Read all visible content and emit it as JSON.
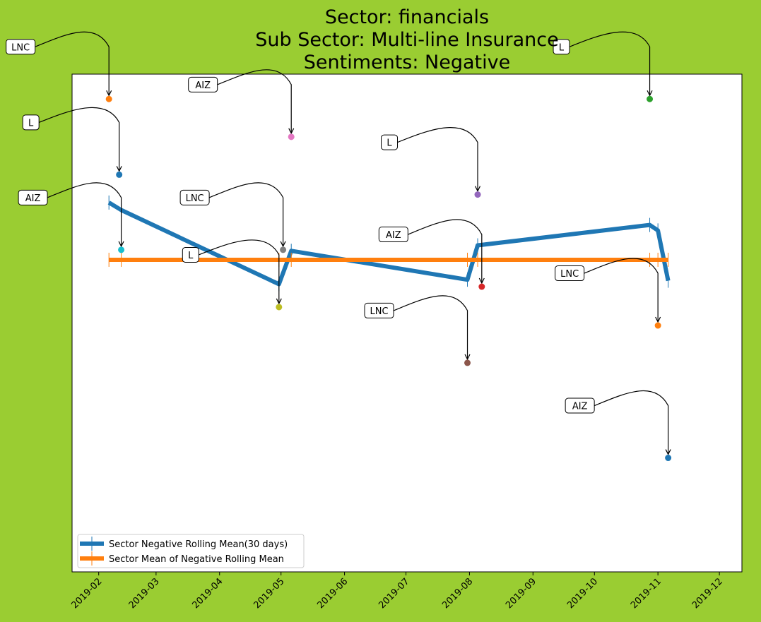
{
  "colors": {
    "background": "#9acd32",
    "plot_background": "#ffffff",
    "rolling_mean": "#1f77b4",
    "sector_mean": "#ff7f0e"
  },
  "chart_data": {
    "type": "line",
    "title_lines": [
      "Sector:  financials",
      "Sub Sector:  Multi-line Insurance",
      "Sentiments:  Negative"
    ],
    "xlabel": "",
    "ylabel": "",
    "x_axis": {
      "type": "date",
      "range": [
        "2019-01-19",
        "2019-12-12"
      ],
      "ticks": [
        "2019-02-01",
        "2019-03-01",
        "2019-04-01",
        "2019-05-01",
        "2019-06-01",
        "2019-07-01",
        "2019-08-01",
        "2019-09-01",
        "2019-10-01",
        "2019-11-01",
        "2019-12-01"
      ],
      "tick_labels": [
        "2019-02",
        "2019-03",
        "2019-04",
        "2019-05",
        "2019-06",
        "2019-07",
        "2019-08",
        "2019-09",
        "2019-10",
        "2019-11",
        "2019-12"
      ]
    },
    "y_axis": {
      "visible": false,
      "range": [
        0.0,
        1.0
      ]
    },
    "grid": false,
    "legend": {
      "position": "lower-left",
      "entries": [
        "Sector Negative Rolling Mean(30 days)",
        "Sector Mean of Negative Rolling Mean"
      ]
    },
    "series": [
      {
        "name": "Sector Negative Rolling Mean(30 days)",
        "color": "#1f77b4",
        "points": [
          {
            "x": "2019-02-06",
            "y": 0.742
          },
          {
            "x": "2019-02-12",
            "y": 0.727
          },
          {
            "x": "2019-04-30",
            "y": 0.578
          },
          {
            "x": "2019-05-06",
            "y": 0.645
          },
          {
            "x": "2019-07-31",
            "y": 0.587
          },
          {
            "x": "2019-08-05",
            "y": 0.656
          },
          {
            "x": "2019-10-28",
            "y": 0.697
          },
          {
            "x": "2019-11-01",
            "y": 0.686
          },
          {
            "x": "2019-11-06",
            "y": 0.585
          }
        ]
      },
      {
        "name": "Sector Mean of Negative Rolling Mean",
        "color": "#ff7f0e",
        "points": [
          {
            "x": "2019-02-06",
            "y": 0.627
          },
          {
            "x": "2019-02-12",
            "y": 0.627
          },
          {
            "x": "2019-04-30",
            "y": 0.627
          },
          {
            "x": "2019-05-06",
            "y": 0.627
          },
          {
            "x": "2019-07-31",
            "y": 0.627
          },
          {
            "x": "2019-08-05",
            "y": 0.627
          },
          {
            "x": "2019-10-28",
            "y": 0.627
          },
          {
            "x": "2019-11-01",
            "y": 0.627
          },
          {
            "x": "2019-11-06",
            "y": 0.627
          }
        ]
      }
    ],
    "annotations": [
      {
        "label": "LNC",
        "x": "2019-02-06",
        "y": 0.95,
        "color": "#ff7f0e"
      },
      {
        "label": "L",
        "x": "2019-02-11",
        "y": 0.798,
        "color": "#1f77b4"
      },
      {
        "label": "AIZ",
        "x": "2019-02-12",
        "y": 0.647,
        "color": "#17becf"
      },
      {
        "label": "AIZ",
        "x": "2019-05-06",
        "y": 0.874,
        "color": "#e377c2"
      },
      {
        "label": "LNC",
        "x": "2019-05-02",
        "y": 0.647,
        "color": "#7f7f7f"
      },
      {
        "label": "L",
        "x": "2019-04-30",
        "y": 0.532,
        "color": "#bcbd22"
      },
      {
        "label": "L",
        "x": "2019-08-05",
        "y": 0.758,
        "color": "#9467bd"
      },
      {
        "label": "AIZ",
        "x": "2019-08-07",
        "y": 0.573,
        "color": "#d62728"
      },
      {
        "label": "LNC",
        "x": "2019-07-31",
        "y": 0.42,
        "color": "#8c564b"
      },
      {
        "label": "L",
        "x": "2019-10-28",
        "y": 0.95,
        "color": "#2ca02c"
      },
      {
        "label": "LNC",
        "x": "2019-11-01",
        "y": 0.495,
        "color": "#ff7f0e"
      },
      {
        "label": "AIZ",
        "x": "2019-11-06",
        "y": 0.229,
        "color": "#1f77b4"
      }
    ]
  }
}
